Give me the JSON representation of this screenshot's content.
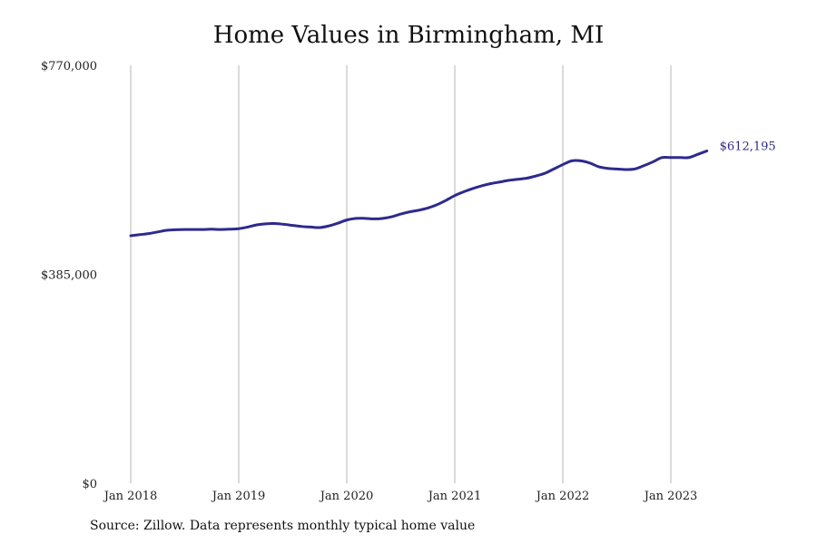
{
  "chart_data": {
    "type": "line",
    "title": "Home Values in Birmingham, MI",
    "source": "Source: Zillow. Data represents monthly typical home value",
    "xlabel": "",
    "ylabel": "",
    "ylim": [
      0,
      770000
    ],
    "y_ticks": [
      0,
      385000,
      770000
    ],
    "y_tick_labels": [
      "$0",
      "$385,000",
      "$770,000"
    ],
    "x_ticks": [
      "2018-01",
      "2019-01",
      "2020-01",
      "2021-01",
      "2022-01",
      "2023-01"
    ],
    "x_tick_labels": [
      "Jan 2018",
      "Jan 2019",
      "Jan 2020",
      "Jan 2021",
      "Jan 2022",
      "Jan 2023"
    ],
    "grid": "vertical",
    "line_color": "#2e2a8c",
    "end_label": "$612,195",
    "series": [
      {
        "x": [
          "2018-01",
          "2018-02",
          "2018-03",
          "2018-04",
          "2018-05",
          "2018-06",
          "2018-07",
          "2018-08",
          "2018-09",
          "2018-10",
          "2018-11",
          "2018-12",
          "2019-01",
          "2019-02",
          "2019-03",
          "2019-04",
          "2019-05",
          "2019-06",
          "2019-07",
          "2019-08",
          "2019-09",
          "2019-10",
          "2019-11",
          "2019-12",
          "2020-01",
          "2020-02",
          "2020-03",
          "2020-04",
          "2020-05",
          "2020-06",
          "2020-07",
          "2020-08",
          "2020-09",
          "2020-10",
          "2020-11",
          "2020-12",
          "2021-01",
          "2021-02",
          "2021-03",
          "2021-04",
          "2021-05",
          "2021-06",
          "2021-07",
          "2021-08",
          "2021-09",
          "2021-10",
          "2021-11",
          "2021-12",
          "2022-01",
          "2022-02",
          "2022-03",
          "2022-04",
          "2022-05",
          "2022-06",
          "2022-07",
          "2022-08",
          "2022-09",
          "2022-10",
          "2022-11",
          "2022-12",
          "2023-01",
          "2023-02",
          "2023-03",
          "2023-04",
          "2023-05"
        ],
        "values": [
          456000,
          458000,
          460000,
          463000,
          466000,
          467000,
          467500,
          467500,
          467500,
          468000,
          467500,
          468000,
          469000,
          472000,
          476000,
          478000,
          478500,
          477000,
          475000,
          473000,
          472000,
          471000,
          474000,
          479000,
          485000,
          488000,
          488000,
          487000,
          488000,
          491000,
          496000,
          500000,
          503000,
          507000,
          513000,
          521000,
          530000,
          537000,
          543000,
          548000,
          552000,
          555000,
          558000,
          560000,
          562000,
          566000,
          571000,
          579000,
          587000,
          594000,
          594000,
          590000,
          583000,
          580000,
          579000,
          578000,
          579000,
          585000,
          592000,
          600000,
          600000,
          600000,
          600000,
          606000,
          612195
        ]
      }
    ]
  }
}
